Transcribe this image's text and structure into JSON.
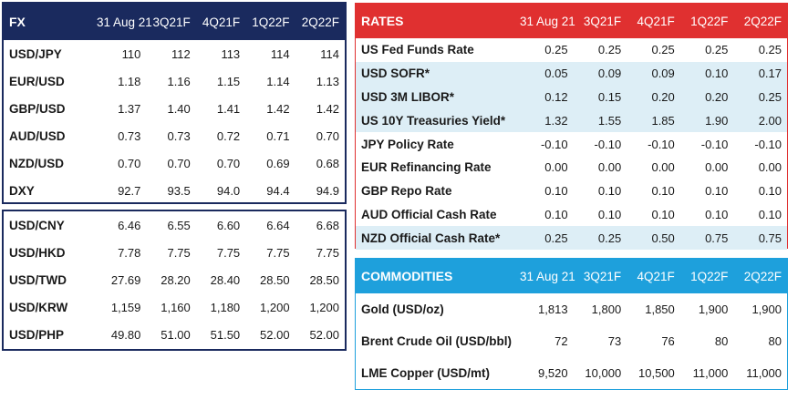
{
  "fx": {
    "header": {
      "label": "FX",
      "cols": [
        "31 Aug 21",
        "3Q21F",
        "4Q21F",
        "1Q22F",
        "2Q22F"
      ]
    },
    "rows": [
      {
        "label": "USD/JPY",
        "values": [
          "110",
          "112",
          "113",
          "114",
          "114"
        ]
      },
      {
        "label": "EUR/USD",
        "values": [
          "1.18",
          "1.16",
          "1.15",
          "1.14",
          "1.13"
        ]
      },
      {
        "label": "GBP/USD",
        "values": [
          "1.37",
          "1.40",
          "1.41",
          "1.42",
          "1.42"
        ]
      },
      {
        "label": "AUD/USD",
        "values": [
          "0.73",
          "0.73",
          "0.72",
          "0.71",
          "0.70"
        ]
      },
      {
        "label": "NZD/USD",
        "values": [
          "0.70",
          "0.70",
          "0.70",
          "0.69",
          "0.68"
        ]
      },
      {
        "label": "DXY",
        "values": [
          "92.7",
          "93.5",
          "94.0",
          "94.4",
          "94.9"
        ]
      }
    ],
    "asia_rows": [
      {
        "label": "USD/CNY",
        "values": [
          "6.46",
          "6.55",
          "6.60",
          "6.64",
          "6.68"
        ]
      },
      {
        "label": "USD/HKD",
        "values": [
          "7.78",
          "7.75",
          "7.75",
          "7.75",
          "7.75"
        ]
      },
      {
        "label": "USD/TWD",
        "values": [
          "27.69",
          "28.20",
          "28.40",
          "28.50",
          "28.50"
        ]
      },
      {
        "label": "USD/KRW",
        "values": [
          "1,159",
          "1,160",
          "1,180",
          "1,200",
          "1,200"
        ]
      },
      {
        "label": "USD/PHP",
        "values": [
          "49.80",
          "51.00",
          "51.50",
          "52.00",
          "52.00"
        ]
      }
    ]
  },
  "rates": {
    "header": {
      "label": "RATES",
      "cols": [
        "31 Aug 21",
        "3Q21F",
        "4Q21F",
        "1Q22F",
        "2Q22F"
      ]
    },
    "rows": [
      {
        "label": "US Fed Funds Rate",
        "values": [
          "0.25",
          "0.25",
          "0.25",
          "0.25",
          "0.25"
        ]
      },
      {
        "label": "USD SOFR*",
        "values": [
          "0.05",
          "0.09",
          "0.09",
          "0.10",
          "0.17"
        ]
      },
      {
        "label": "USD 3M LIBOR*",
        "values": [
          "0.12",
          "0.15",
          "0.20",
          "0.20",
          "0.25"
        ]
      },
      {
        "label": "US 10Y Treasuries Yield*",
        "values": [
          "1.32",
          "1.55",
          "1.85",
          "1.90",
          "2.00"
        ]
      },
      {
        "label": "JPY Policy Rate",
        "values": [
          "-0.10",
          "-0.10",
          "-0.10",
          "-0.10",
          "-0.10"
        ]
      },
      {
        "label": "EUR Refinancing Rate",
        "values": [
          "0.00",
          "0.00",
          "0.00",
          "0.00",
          "0.00"
        ]
      },
      {
        "label": "GBP Repo Rate",
        "values": [
          "0.10",
          "0.10",
          "0.10",
          "0.10",
          "0.10"
        ]
      },
      {
        "label": "AUD Official Cash Rate",
        "values": [
          "0.10",
          "0.10",
          "0.10",
          "0.10",
          "0.10"
        ]
      },
      {
        "label": "NZD Official Cash Rate*",
        "values": [
          "0.25",
          "0.25",
          "0.50",
          "0.75",
          "0.75"
        ]
      }
    ]
  },
  "commodities": {
    "header": {
      "label": "COMMODITIES",
      "cols": [
        "31 Aug 21",
        "3Q21F",
        "4Q21F",
        "1Q22F",
        "2Q22F"
      ]
    },
    "rows": [
      {
        "label": "Gold (USD/oz)",
        "values": [
          "1,813",
          "1,800",
          "1,850",
          "1,900",
          "1,900"
        ]
      },
      {
        "label": "Brent Crude Oil (USD/bbl)",
        "values": [
          "72",
          "73",
          "76",
          "80",
          "80"
        ]
      },
      {
        "label": "LME Copper (USD/mt)",
        "values": [
          "9,520",
          "10,000",
          "10,500",
          "11,000",
          "11,000"
        ]
      }
    ]
  },
  "colors": {
    "fx": "#1a2a5e",
    "rates": "#e03030",
    "commodities": "#1ea0dc",
    "row_shade": "#ddeef6"
  }
}
